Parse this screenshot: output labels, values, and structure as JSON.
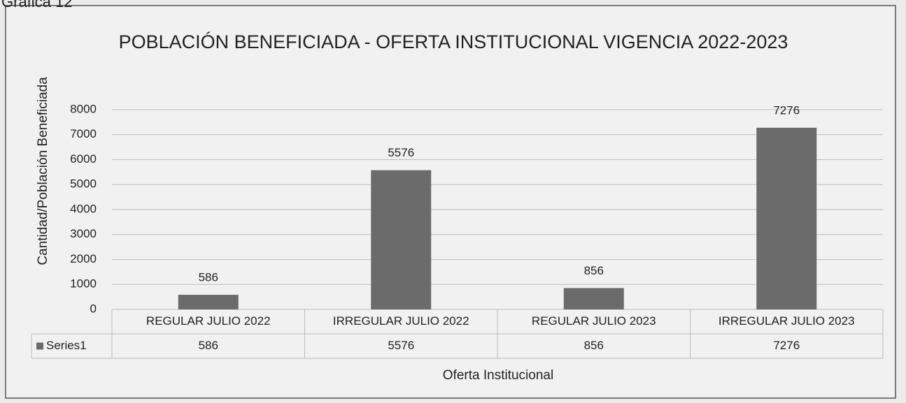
{
  "caption": "Gráfica 12",
  "chart_data": {
    "type": "bar",
    "title": "POBLACIÓN BENEFICIADA - OFERTA INSTITUCIONAL VIGENCIA 2022-2023",
    "y_label": "Cantidad/Población Beneficiada",
    "x_label": "Oferta Institucional",
    "categories": [
      "REGULAR JULIO 2022",
      "IRREGULAR JULIO 2022",
      "REGULAR JULIO 2023",
      "IRREGULAR JULIO 2023"
    ],
    "series": [
      {
        "name": "Series1",
        "color": "#6b6b6b",
        "values": [
          586,
          5576,
          856,
          7276
        ]
      }
    ],
    "ylim": [
      0,
      8000
    ],
    "yticks": [
      0,
      1000,
      2000,
      3000,
      4000,
      5000,
      6000,
      7000,
      8000
    ],
    "grid": true,
    "data_table": true
  }
}
